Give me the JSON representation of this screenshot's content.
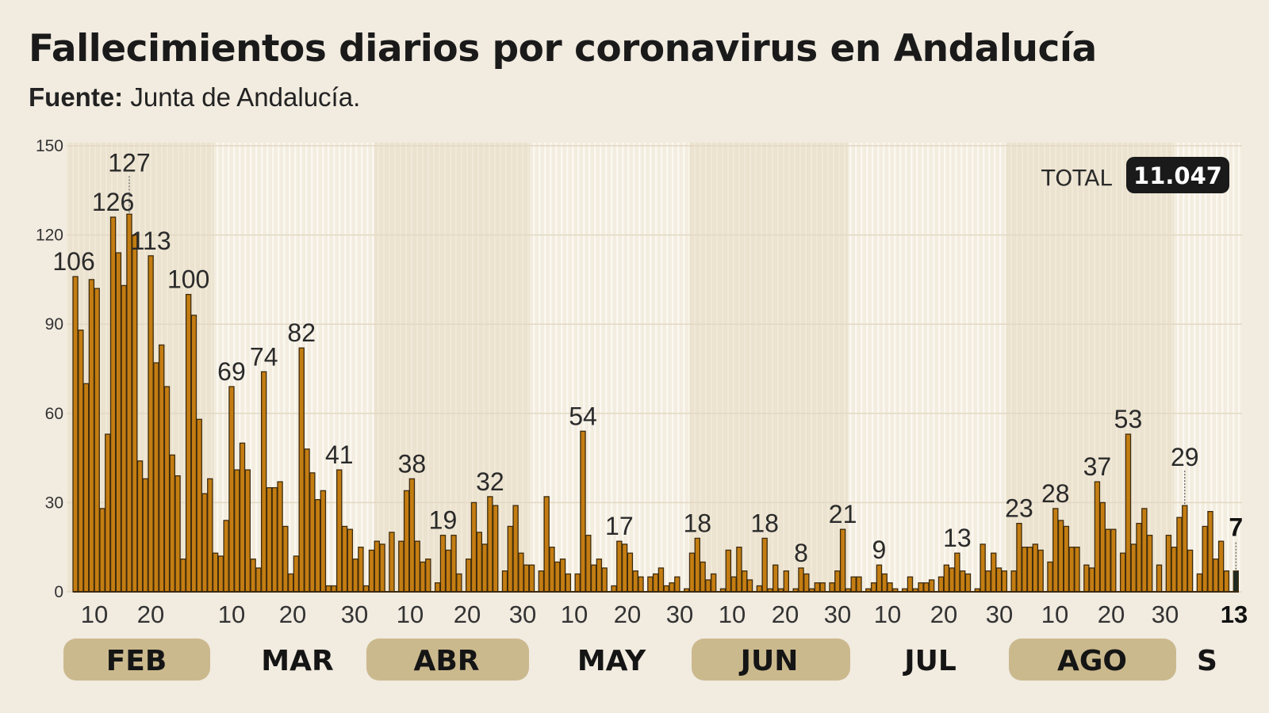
{
  "header": {
    "title": "Fallecimientos diarios por coronavirus en Andalucía",
    "source_label": "Fuente:",
    "source": "Junta de Andalucía."
  },
  "total": {
    "label": "TOTAL",
    "value": "11.047"
  },
  "colors": {
    "background": "#f1ebe0",
    "bar": "#c47d12",
    "bar_outline": "#3d2b0e",
    "last_bar": "#1e2a20",
    "month_pill": "#cbb98e",
    "total_badge": "#1a1a1a"
  },
  "chart_data": {
    "type": "bar",
    "title": "Fallecimientos diarios por coronavirus en Andalucía",
    "ylim": [
      0,
      150
    ],
    "y_ticks": [
      "0",
      "30",
      "60",
      "90",
      "120",
      "150"
    ],
    "grid": "horizontal",
    "x_range": [
      "FEB",
      "S 13"
    ],
    "groups": [
      [
        106,
        88,
        70,
        105,
        102,
        28,
        53,
        126,
        114,
        103,
        127,
        120,
        44,
        38,
        113,
        77,
        83,
        69,
        46,
        39,
        11,
        100,
        93,
        58,
        33,
        38,
        13,
        12,
        24,
        69,
        41,
        50,
        41,
        11,
        8,
        74,
        35,
        35,
        37,
        22,
        6,
        12,
        82,
        48,
        40,
        31,
        34,
        2,
        2,
        41,
        22,
        21,
        11,
        15,
        2,
        14,
        17,
        16
      ],
      [
        20
      ],
      [
        17,
        34,
        38,
        17,
        10,
        11
      ],
      [
        3,
        19,
        14,
        19,
        6
      ],
      [
        11,
        30,
        20,
        16,
        32,
        29
      ],
      [
        7,
        22,
        29,
        13,
        9,
        9
      ],
      [
        7,
        32,
        15,
        10,
        11,
        6
      ],
      [
        6,
        54,
        19,
        9,
        11,
        8
      ],
      [
        2,
        17,
        16,
        13,
        7,
        5
      ],
      [
        5,
        6,
        8,
        2,
        3,
        5
      ],
      [
        1,
        13,
        18,
        10,
        4,
        6
      ],
      [
        1,
        14,
        5,
        15,
        7,
        4
      ],
      [
        2,
        18,
        1,
        9,
        1,
        7
      ],
      [
        1,
        8,
        6,
        1,
        3,
        3
      ],
      [
        3,
        7,
        21,
        1,
        5,
        5
      ],
      [
        1,
        3,
        9,
        6,
        3,
        1
      ],
      [
        1,
        5,
        1,
        3,
        3,
        4
      ],
      [
        5,
        9,
        8,
        13,
        7,
        6
      ],
      [
        1,
        16,
        7,
        13,
        8,
        7
      ],
      [
        7,
        23,
        15,
        15,
        16,
        14
      ],
      [
        10,
        28,
        24,
        22,
        15,
        15
      ],
      [
        9,
        8,
        37,
        30,
        21,
        21
      ],
      [
        13,
        53,
        16,
        23,
        28,
        19
      ],
      [
        9
      ],
      [
        19,
        15,
        25,
        29,
        14
      ],
      [
        6,
        22,
        27,
        11,
        17,
        7
      ],
      [
        7
      ]
    ],
    "annotations": [
      {
        "g": 0,
        "i": 0,
        "text": "106"
      },
      {
        "g": 0,
        "i": 7,
        "text": "126"
      },
      {
        "g": 0,
        "i": 10,
        "text": "127",
        "leader": true
      },
      {
        "g": 0,
        "i": 14,
        "text": "113"
      },
      {
        "g": 0,
        "i": 21,
        "text": "100"
      },
      {
        "g": 0,
        "i": 29,
        "text": "69"
      },
      {
        "g": 0,
        "i": 35,
        "text": "74"
      },
      {
        "g": 0,
        "i": 42,
        "text": "82"
      },
      {
        "g": 0,
        "i": 49,
        "text": "41"
      },
      {
        "g": 2,
        "i": 2,
        "text": "38"
      },
      {
        "g": 3,
        "i": 1,
        "text": "19"
      },
      {
        "g": 4,
        "i": 4,
        "text": "32"
      },
      {
        "g": 7,
        "i": 1,
        "text": "54"
      },
      {
        "g": 8,
        "i": 1,
        "text": "17"
      },
      {
        "g": 10,
        "i": 2,
        "text": "18"
      },
      {
        "g": 12,
        "i": 1,
        "text": "18"
      },
      {
        "g": 13,
        "i": 1,
        "text": "8"
      },
      {
        "g": 14,
        "i": 2,
        "text": "21"
      },
      {
        "g": 15,
        "i": 2,
        "text": "9"
      },
      {
        "g": 17,
        "i": 3,
        "text": "13"
      },
      {
        "g": 19,
        "i": 1,
        "text": "23"
      },
      {
        "g": 20,
        "i": 1,
        "text": "28"
      },
      {
        "g": 21,
        "i": 2,
        "text": "37"
      },
      {
        "g": 22,
        "i": 1,
        "text": "53"
      },
      {
        "g": 24,
        "i": 3,
        "text": "29",
        "leader": true
      },
      {
        "g": 26,
        "i": 0,
        "text": "7",
        "leader": true,
        "bold": true
      }
    ],
    "day_ticks": [
      "10",
      "20",
      "10",
      "20",
      "30",
      "10",
      "20",
      "30",
      "10",
      "20",
      "30",
      "10",
      "20",
      "30",
      "10",
      "20",
      "30",
      "10",
      "20",
      "30",
      "13"
    ],
    "months": [
      {
        "label": "FEB",
        "highlight": true
      },
      {
        "label": "MAR",
        "highlight": false
      },
      {
        "label": "ABR",
        "highlight": true
      },
      {
        "label": "MAY",
        "highlight": false
      },
      {
        "label": "JUN",
        "highlight": true
      },
      {
        "label": "JUL",
        "highlight": false
      },
      {
        "label": "AGO",
        "highlight": true
      },
      {
        "label": "S",
        "highlight": false
      }
    ]
  }
}
